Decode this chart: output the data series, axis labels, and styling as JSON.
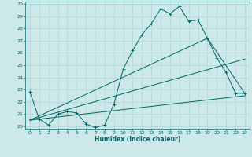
{
  "xlabel": "Humidex (Indice chaleur)",
  "ylabel": "",
  "xlim": [
    -0.5,
    23.5
  ],
  "ylim": [
    19.8,
    30.2
  ],
  "yticks": [
    20,
    21,
    22,
    23,
    24,
    25,
    26,
    27,
    28,
    29,
    30
  ],
  "xticks": [
    0,
    1,
    2,
    3,
    4,
    5,
    6,
    7,
    8,
    9,
    10,
    11,
    12,
    13,
    14,
    15,
    16,
    17,
    18,
    19,
    20,
    21,
    22,
    23
  ],
  "bg_color": "#cce8e8",
  "grid_color": "#b0d8d8",
  "line_color": "#006666",
  "lines": [
    {
      "x": [
        0,
        1,
        2,
        3,
        4,
        5,
        6,
        7,
        8,
        9,
        10,
        11,
        12,
        13,
        14,
        15,
        16,
        17,
        18,
        19,
        20,
        21,
        22,
        23
      ],
      "y": [
        22.8,
        20.6,
        20.1,
        21.0,
        21.2,
        21.1,
        20.2,
        19.9,
        20.1,
        21.8,
        24.7,
        26.2,
        27.5,
        28.4,
        29.6,
        29.2,
        29.8,
        28.6,
        28.7,
        27.2,
        25.6,
        24.4,
        22.7,
        22.7
      ],
      "marker": "+"
    },
    {
      "x": [
        0,
        23
      ],
      "y": [
        20.5,
        22.5
      ],
      "marker": null
    },
    {
      "x": [
        0,
        23
      ],
      "y": [
        20.5,
        25.5
      ],
      "marker": null
    },
    {
      "x": [
        0,
        19,
        23
      ],
      "y": [
        20.5,
        27.2,
        22.7
      ],
      "marker": null
    }
  ],
  "xlabel_fontsize": 5.5,
  "tick_fontsize": 4.5
}
